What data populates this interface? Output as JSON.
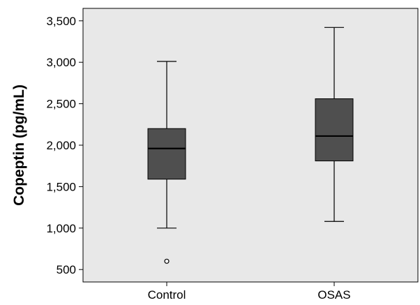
{
  "chart_data": {
    "type": "boxplot",
    "title": "",
    "xlabel": "",
    "ylabel": "Copeptin (pg/mL)",
    "ylim": [
      350,
      3650
    ],
    "yticks": [
      500,
      1000,
      1500,
      2000,
      2500,
      3000,
      3500
    ],
    "ytick_labels": [
      "500",
      "1,000",
      "1,500",
      "2,000",
      "2,500",
      "3,000",
      "3,500"
    ],
    "grid": false,
    "categories": [
      "Control",
      "OSAS"
    ],
    "boxes": [
      {
        "category": "Control",
        "min": 1000,
        "q1": 1590,
        "median": 1960,
        "q3": 2200,
        "max": 3010,
        "outliers": [
          600
        ]
      },
      {
        "category": "OSAS",
        "min": 1080,
        "q1": 1810,
        "median": 2110,
        "q3": 2560,
        "max": 3420,
        "outliers": []
      }
    ],
    "colors": {
      "plot_bg": "#e8e8e8",
      "box_fill": "#4f4f4f",
      "line": "#000000"
    }
  }
}
